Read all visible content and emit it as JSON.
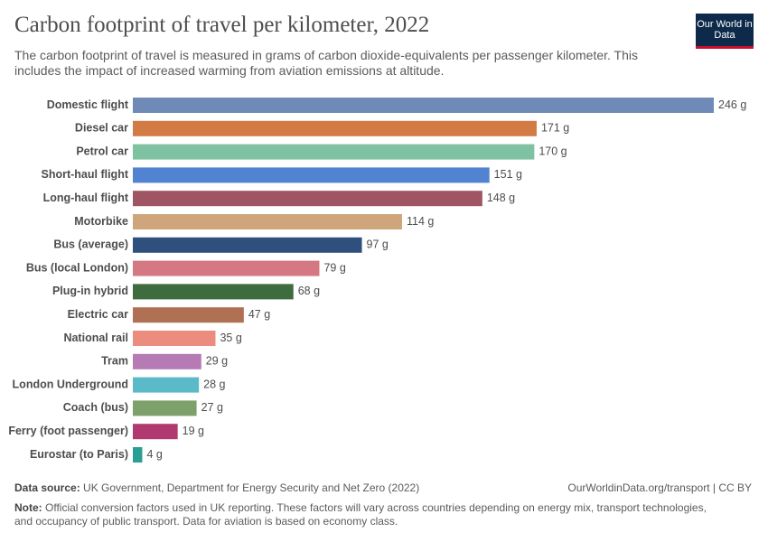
{
  "chart_data": {
    "type": "hbar",
    "title": "Carbon footprint of travel per kilometer, 2022",
    "subtitle": "The carbon footprint of travel is measured in grams of carbon dioxide-equivalents per passenger kilometer. This includes the impact of increased warming from aviation emissions at altitude.",
    "logo": "Our World in Data",
    "categories": [
      "Domestic flight",
      "Diesel car",
      "Petrol car",
      "Short-haul flight",
      "Long-haul flight",
      "Motorbike",
      "Bus (average)",
      "Bus (local London)",
      "Plug-in hybrid",
      "Electric car",
      "National rail",
      "Tram",
      "London Underground",
      "Coach (bus)",
      "Ferry (foot passenger)",
      "Eurostar (to Paris)"
    ],
    "values": [
      246,
      171,
      170,
      151,
      148,
      114,
      97,
      79,
      68,
      47,
      35,
      29,
      28,
      27,
      19,
      4
    ],
    "value_labels": [
      "246 g",
      "171 g",
      "170 g",
      "151 g",
      "148 g",
      "114 g",
      "97 g",
      "79 g",
      "68 g",
      "47 g",
      "35 g",
      "29 g",
      "28 g",
      "27 g",
      "19 g",
      "4 g"
    ],
    "colors": [
      "#6f8ab7",
      "#d37b45",
      "#7fc2a2",
      "#5183d0",
      "#a05565",
      "#cfa67c",
      "#2f4f7c",
      "#d47884",
      "#3e6c3f",
      "#b07053",
      "#ec8c7f",
      "#b67ab5",
      "#5bbac8",
      "#7ea06a",
      "#b03a70",
      "#2a9d94"
    ],
    "source_label": "Data source:",
    "source": "UK Government, Department for Energy Security and Net Zero (2022)",
    "credit": "OurWorldinData.org/transport | CC BY",
    "note_label": "Note:",
    "note": "Official conversion factors used in UK reporting. These factors will vary across countries depending on energy mix, transport technologies, and occupancy of public transport. Data for aviation is based on economy class."
  }
}
